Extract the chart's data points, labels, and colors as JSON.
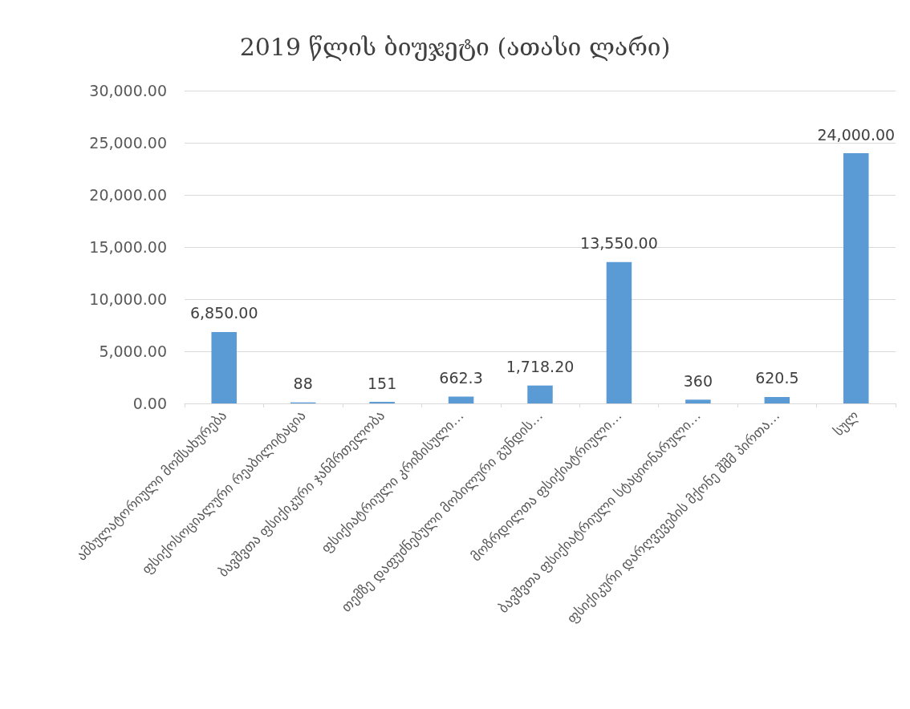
{
  "chart_data": {
    "type": "bar",
    "title": "2019 წლის ბიუჯეტი (ათასი ლარი)",
    "categories": [
      "ამბულატორიული მომსახურება",
      "ფსიქოსოციალური რეაბილიტაცია",
      "ბავშვთა ფსიქიკური ჯანმრთელობა",
      "ფსიქიატრიული კრიზისული…",
      "თემზე დაფუძნებული მობილური გუნდის…",
      "მოზრდილთა ფსიქიატრიული…",
      "ბავშვთა ფსიქიატრიული სტაციონარული…",
      "ფსიქიკური დარღვევების მქონე შშმ პირთა…",
      "სულ"
    ],
    "values": [
      6850,
      88,
      151,
      662.3,
      1718.2,
      13550,
      360,
      620.5,
      24000
    ],
    "value_labels": [
      "6,850.00",
      "88",
      "151",
      "662.3",
      "1,718.20",
      "13,550.00",
      "360",
      "620.5",
      "24,000.00"
    ],
    "color": "#5b9bd5",
    "ylim": [
      0,
      30000
    ],
    "yticks": [
      {
        "value": 0,
        "label": "0.00"
      },
      {
        "value": 5000,
        "label": "5,000.00"
      },
      {
        "value": 10000,
        "label": "10,000.00"
      },
      {
        "value": 15000,
        "label": "15,000.00"
      },
      {
        "value": 20000,
        "label": "20,000.00"
      },
      {
        "value": 25000,
        "label": "25,000.00"
      },
      {
        "value": 30000,
        "label": "30,000.00"
      }
    ],
    "grid": "y"
  }
}
